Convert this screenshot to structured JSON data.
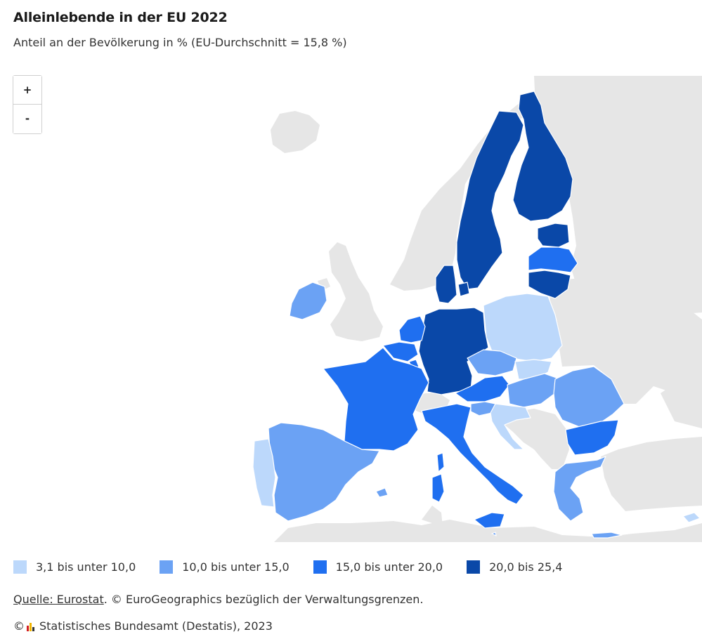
{
  "header": {
    "title": "Alleinlebende in der EU 2022",
    "subtitle": "Anteil an der Bevölkerung in % (EU-Durchschnitt = 15,8 %)"
  },
  "zoom": {
    "in_label": "+",
    "out_label": "-"
  },
  "colors": {
    "background_land": "#e6e6e6",
    "sea": "#ffffff",
    "class1": "#bcd8fb",
    "class2": "#6ba2f4",
    "class3": "#1f6ff0",
    "class4": "#0a48a8",
    "border": "#ffffff"
  },
  "legend": [
    {
      "label": "3,1 bis unter 10,0",
      "color": "#bcd8fb"
    },
    {
      "label": "10,0 bis unter 15,0",
      "color": "#6ba2f4"
    },
    {
      "label": "15,0 bis unter 20,0",
      "color": "#1f6ff0"
    },
    {
      "label": "20,0 bis 25,4",
      "color": "#0a48a8"
    }
  ],
  "countries": {
    "Sweden": "20,0 bis 25,4",
    "Finland": "20,0 bis 25,4",
    "Denmark": "20,0 bis 25,4",
    "Germany": "20,0 bis 25,4",
    "Estonia": "20,0 bis 25,4",
    "Lithuania": "20,0 bis 25,4",
    "Latvia": "15,0 bis unter 20,0",
    "Netherlands": "15,0 bis unter 20,0",
    "Belgium": "15,0 bis unter 20,0",
    "Luxembourg": "15,0 bis unter 20,0",
    "France": "15,0 bis unter 20,0",
    "Italy": "15,0 bis unter 20,0",
    "Austria": "15,0 bis unter 20,0",
    "Bulgaria": "15,0 bis unter 20,0",
    "Ireland": "10,0 bis unter 15,0",
    "Spain": "10,0 bis unter 15,0",
    "Czechia": "10,0 bis unter 15,0",
    "Hungary": "10,0 bis unter 15,0",
    "Romania": "10,0 bis unter 15,0",
    "Greece": "10,0 bis unter 15,0",
    "Slovenia": "10,0 bis unter 15,0",
    "Malta": "10,0 bis unter 15,0",
    "Portugal": "3,1 bis unter 10,0",
    "Poland": "3,1 bis unter 10,0",
    "Slovakia": "3,1 bis unter 10,0",
    "Croatia": "3,1 bis unter 10,0",
    "Cyprus": "3,1 bis unter 10,0"
  },
  "source": {
    "link_text": "Quelle: Eurostat",
    "rest_text": ". © EuroGeographics bezüglich der Verwaltungsgrenzen."
  },
  "copyright": {
    "symbol": "©",
    "text": "Statistisches Bundesamt (Destatis), 2023",
    "logo_colors": [
      "#d21e24",
      "#f0b400",
      "#333333"
    ]
  }
}
